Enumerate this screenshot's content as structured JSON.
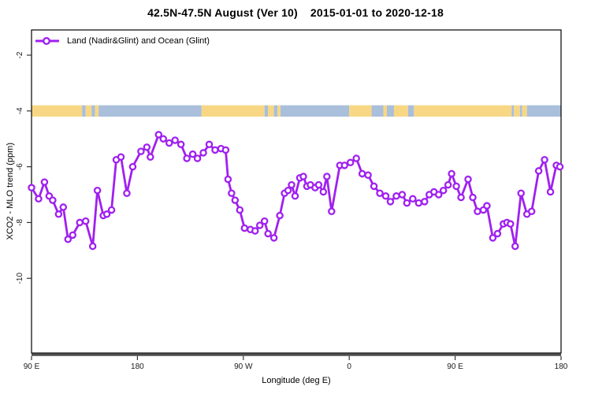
{
  "chart_data": {
    "type": "line",
    "title_main": "42.5N-47.5N August (Ver 10)",
    "title_range": "2015-01-01 to 2020-12-18",
    "legend": "Land (Nadir&Glint) and Ocean (Glint)",
    "xlabel": "Longitude (deg E)",
    "ylabel": "XCO2 - MLO trend (ppm)",
    "xlim": [
      90,
      540
    ],
    "ylim": [
      -12.6,
      -1.1
    ],
    "grid": false,
    "legend_position": "top-left-inside",
    "x_ticks": [
      {
        "lon": 90,
        "label": "90 E"
      },
      {
        "lon": 180,
        "label": "180"
      },
      {
        "lon": 270,
        "label": "90 W"
      },
      {
        "lon": 360,
        "label": "0"
      },
      {
        "lon": 450,
        "label": "90 E"
      },
      {
        "lon": 540,
        "label": "180"
      }
    ],
    "y_ticks": [
      {
        "value": -2,
        "label": "-2"
      },
      {
        "value": -4,
        "label": "-4"
      },
      {
        "value": -6,
        "label": "-6"
      },
      {
        "value": -8,
        "label": "-8"
      },
      {
        "value": -10,
        "label": "-10"
      }
    ],
    "series": [
      {
        "name": "Land (Nadir&Glint) and Ocean (Glint)",
        "marker": "open-circle",
        "x": [
          90,
          96,
          101,
          105,
          108,
          113,
          117,
          121,
          125,
          131,
          136,
          142,
          146,
          151,
          154,
          158,
          162,
          166,
          171,
          176,
          183,
          188,
          191,
          198,
          202,
          207,
          212,
          217,
          222,
          227,
          231,
          236,
          241,
          246,
          251,
          255,
          257,
          260,
          263,
          267,
          271,
          276,
          280,
          284,
          288,
          291,
          296,
          301,
          305,
          308,
          311,
          314,
          318,
          321,
          324,
          327,
          331,
          334,
          338,
          341,
          345,
          352,
          356,
          361,
          366,
          371,
          376,
          381,
          386,
          391,
          395,
          400,
          405,
          409,
          414,
          419,
          424,
          428,
          432,
          436,
          440,
          444,
          447,
          451,
          455,
          461,
          465,
          469,
          474,
          477,
          482,
          486,
          491,
          494,
          497,
          501,
          506,
          511,
          515,
          521,
          526,
          531,
          536,
          539
        ],
        "y": [
          -6.75,
          -7.15,
          -6.55,
          -7.05,
          -7.2,
          -7.7,
          -7.45,
          -8.6,
          -8.45,
          -8.0,
          -7.95,
          -8.85,
          -6.85,
          -7.75,
          -7.7,
          -7.55,
          -5.75,
          -5.65,
          -6.95,
          -6.0,
          -5.45,
          -5.3,
          -5.65,
          -4.85,
          -5.0,
          -5.15,
          -5.05,
          -5.2,
          -5.7,
          -5.55,
          -5.7,
          -5.5,
          -5.2,
          -5.4,
          -5.35,
          -5.4,
          -6.45,
          -6.95,
          -7.2,
          -7.55,
          -8.2,
          -8.25,
          -8.3,
          -8.1,
          -7.95,
          -8.4,
          -8.55,
          -7.75,
          -6.95,
          -6.85,
          -6.65,
          -7.05,
          -6.4,
          -6.35,
          -6.7,
          -6.65,
          -6.75,
          -6.65,
          -6.9,
          -6.35,
          -7.6,
          -5.95,
          -5.95,
          -5.85,
          -5.7,
          -6.25,
          -6.3,
          -6.7,
          -6.95,
          -7.05,
          -7.25,
          -7.05,
          -7.0,
          -7.3,
          -7.15,
          -7.3,
          -7.25,
          -7.0,
          -6.9,
          -7.0,
          -6.85,
          -6.65,
          -6.25,
          -6.7,
          -7.1,
          -6.45,
          -7.1,
          -7.6,
          -7.55,
          -7.4,
          -8.55,
          -8.4,
          -8.05,
          -8.0,
          -8.05,
          -8.85,
          -6.95,
          -7.7,
          -7.6,
          -6.15,
          -5.75,
          -6.9,
          -5.95,
          -6.0
        ]
      }
    ],
    "map_strip": {
      "description": "coastline band drawn at y = -4 ppm, land vs ocean along longitude",
      "center_value": -4,
      "segments": [
        [
          90,
          133,
          "land"
        ],
        [
          133,
          136,
          "ocean"
        ],
        [
          136,
          141,
          "land"
        ],
        [
          141,
          144,
          "ocean"
        ],
        [
          144,
          147,
          "land"
        ],
        [
          147,
          234.5,
          "ocean"
        ],
        [
          234.5,
          288,
          "land"
        ],
        [
          288,
          291,
          "ocean"
        ],
        [
          291,
          296,
          "land"
        ],
        [
          296,
          299,
          "ocean"
        ],
        [
          299,
          301.5,
          "land"
        ],
        [
          301.5,
          360,
          "ocean"
        ],
        [
          360,
          379,
          "land"
        ],
        [
          379,
          389,
          "ocean"
        ],
        [
          389,
          392,
          "land"
        ],
        [
          392,
          398,
          "ocean"
        ],
        [
          398,
          410,
          "land"
        ],
        [
          410,
          415,
          "ocean"
        ],
        [
          415,
          498,
          "land"
        ],
        [
          498,
          500,
          "ocean"
        ],
        [
          500,
          505,
          "land"
        ],
        [
          505,
          507,
          "ocean"
        ],
        [
          507,
          511,
          "land"
        ],
        [
          511,
          540,
          "ocean"
        ]
      ]
    },
    "colors": {
      "line": "#A020F0",
      "marker_fill": "#FFFFFF",
      "land": "#F8D784",
      "ocean": "#A9BFDB",
      "axis_heavy": "#4D4D4D",
      "box": "#000000",
      "tick_text": "#1A1A1A"
    }
  }
}
